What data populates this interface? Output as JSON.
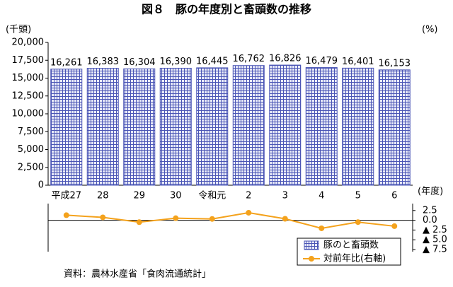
{
  "chart_data": {
    "type": "bar",
    "title": "図８　豚の年度別と畜頭数の推移",
    "y_unit": "(千頭)",
    "y2_unit": "(%)",
    "x_unit": "(年度)",
    "source": "資料：農林水産省「食肉流通統計」",
    "categories": [
      "平成27",
      "28",
      "29",
      "30",
      "令和元",
      "2",
      "3",
      "4",
      "5",
      "6"
    ],
    "series": [
      {
        "name": "豚のと畜頭数",
        "color": "#4a55b5",
        "values": [
          16261,
          16383,
          16304,
          16390,
          16445,
          16762,
          16826,
          16479,
          16401,
          16153
        ],
        "value_labels": [
          "16,261",
          "16,383",
          "16,304",
          "16,390",
          "16,445",
          "16,762",
          "16,826",
          "16,479",
          "16,401",
          "16,153"
        ]
      },
      {
        "name": "対前年比(右軸)",
        "color": "#f4a21c",
        "axis": "y2",
        "values": [
          1.3,
          0.75,
          -0.48,
          0.53,
          0.34,
          1.93,
          0.38,
          -2.06,
          -0.47,
          -1.51
        ]
      }
    ],
    "ylim": [
      0,
      20000
    ],
    "yticks": [
      0,
      {
        "value": 2500,
        "label": "2,500"
      },
      {
        "value": 5000,
        "label": "5,000"
      },
      {
        "value": 7500,
        "label": "7,500"
      },
      {
        "value": 10000,
        "label": "10,000"
      },
      {
        "value": 12500,
        "label": "12,500"
      },
      {
        "value": 15000,
        "label": "15,000"
      },
      {
        "value": 17500,
        "label": "17,500"
      },
      {
        "value": 20000,
        "label": "20,000"
      }
    ],
    "y2lim": [
      -7.5,
      5
    ],
    "y2ticks": [
      2.5,
      {
        "value": 0,
        "label": "0.0"
      },
      {
        "value": -2.5,
        "label": "▲ 2.5"
      },
      {
        "value": -5,
        "label": "▲ 5.0"
      },
      {
        "value": -7.5,
        "label": "▲ 7.5"
      }
    ]
  }
}
